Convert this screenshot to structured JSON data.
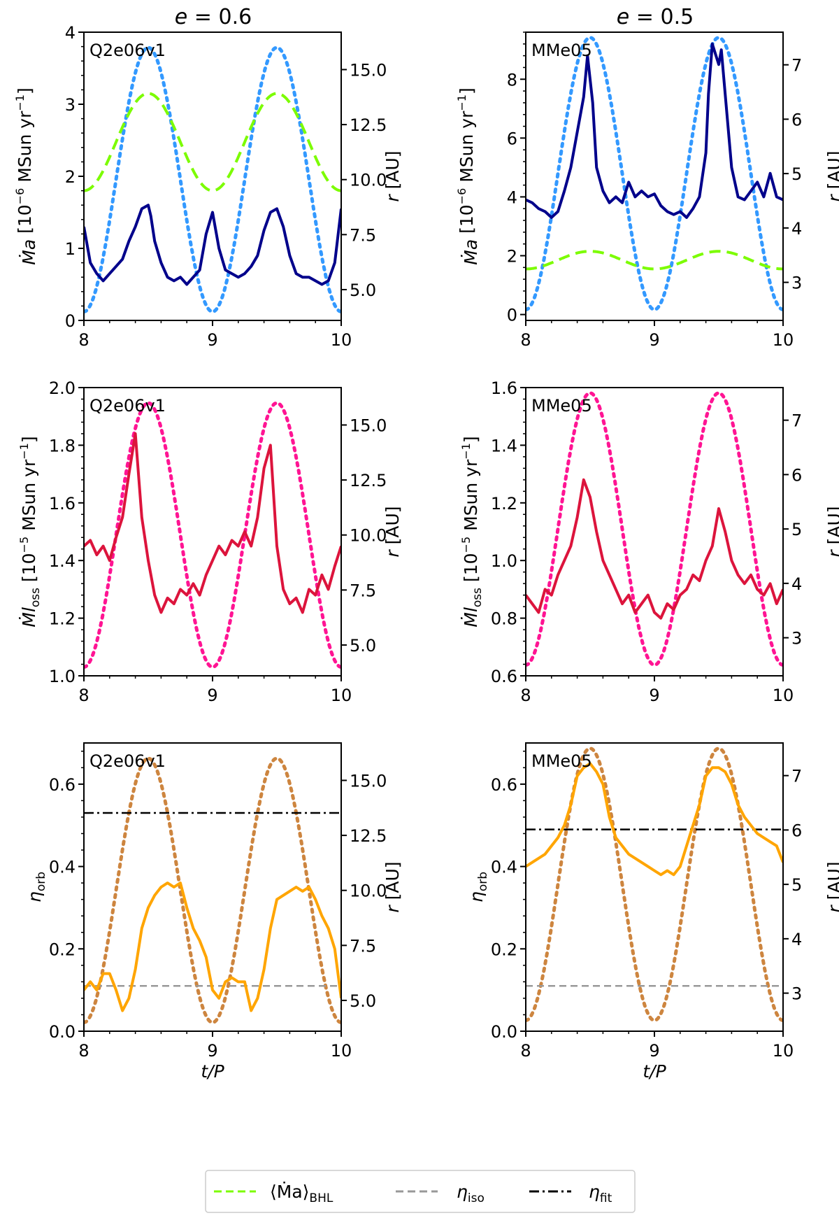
{
  "figure": {
    "columns": [
      {
        "title_lhs": "e",
        "title_eq": " = ",
        "title_val": "0.6"
      },
      {
        "title_lhs": "e",
        "title_eq": " = ",
        "title_val": "0.5"
      }
    ],
    "legend": [
      {
        "label_main": "⟨Ṁa⟩",
        "label_sub": "BHL",
        "color": "#7CFC00",
        "style": "dashed"
      },
      {
        "label_main": "η",
        "label_sub": "iso",
        "color": "#999999",
        "style": "dashed"
      },
      {
        "label_main": "η",
        "label_sub": "fit",
        "color": "#000000",
        "style": "dashdot"
      }
    ]
  },
  "chart_data": [
    {
      "type": "line",
      "row": 0,
      "col": 0,
      "annotation": "Q2e06v1",
      "ylabel": "Ṁa [10^-6 MSun yr^-1]",
      "y2label": "r [AU]",
      "xlim": [
        8,
        10
      ],
      "ylim": [
        0,
        4
      ],
      "y2lim": [
        3.6,
        16.7
      ],
      "xticks": [
        "8",
        "9",
        "10"
      ],
      "yticks": [
        "0",
        "1",
        "2",
        "3",
        "4"
      ],
      "y2ticks": [
        "5.0",
        "7.5",
        "10.0",
        "12.5",
        "15.0"
      ],
      "orbit": {
        "rmin": 4.0,
        "rmax": 16.0,
        "color": "#3399ff"
      },
      "bhl": {
        "min": 1.8,
        "max": 3.15,
        "color": "#7CFC00"
      },
      "main_color": "#00008b",
      "series": [
        {
          "name": "Ṁa",
          "x": [
            8.0,
            8.05,
            8.1,
            8.15,
            8.2,
            8.25,
            8.3,
            8.35,
            8.4,
            8.45,
            8.5,
            8.52,
            8.55,
            8.6,
            8.65,
            8.7,
            8.75,
            8.8,
            8.85,
            8.9,
            8.95,
            9.0,
            9.05,
            9.1,
            9.15,
            9.2,
            9.25,
            9.3,
            9.35,
            9.4,
            9.45,
            9.5,
            9.55,
            9.6,
            9.65,
            9.7,
            9.75,
            9.8,
            9.85,
            9.9,
            9.95,
            10.0
          ],
          "values": [
            1.3,
            0.8,
            0.65,
            0.55,
            0.65,
            0.75,
            0.85,
            1.1,
            1.3,
            1.55,
            1.6,
            1.45,
            1.1,
            0.8,
            0.6,
            0.55,
            0.6,
            0.5,
            0.6,
            0.7,
            1.2,
            1.5,
            1.0,
            0.7,
            0.65,
            0.6,
            0.65,
            0.75,
            0.9,
            1.25,
            1.5,
            1.55,
            1.3,
            0.9,
            0.65,
            0.6,
            0.6,
            0.55,
            0.5,
            0.55,
            0.8,
            1.55
          ]
        }
      ]
    },
    {
      "type": "line",
      "row": 0,
      "col": 1,
      "annotation": "MMe05",
      "ylabel": "Ṁa [10^-6 MSun yr^-1]",
      "y2label": "r [AU]",
      "xlim": [
        8,
        10
      ],
      "ylim": [
        -0.2,
        9.6
      ],
      "y2lim": [
        2.3,
        7.6
      ],
      "xticks": [
        "8",
        "9",
        "10"
      ],
      "yticks": [
        "0",
        "2",
        "4",
        "6",
        "8"
      ],
      "y2ticks": [
        "3",
        "4",
        "5",
        "6",
        "7"
      ],
      "orbit": {
        "rmin": 2.5,
        "rmax": 7.5,
        "color": "#3399ff"
      },
      "bhl": {
        "min": 1.55,
        "max": 2.15,
        "color": "#7CFC00"
      },
      "main_color": "#00008b",
      "series": [
        {
          "name": "Ṁa",
          "x": [
            8.0,
            8.05,
            8.1,
            8.15,
            8.2,
            8.25,
            8.3,
            8.35,
            8.4,
            8.45,
            8.48,
            8.5,
            8.52,
            8.55,
            8.6,
            8.65,
            8.7,
            8.75,
            8.8,
            8.85,
            8.9,
            8.95,
            9.0,
            9.05,
            9.1,
            9.15,
            9.2,
            9.25,
            9.3,
            9.35,
            9.4,
            9.42,
            9.45,
            9.5,
            9.52,
            9.55,
            9.6,
            9.65,
            9.7,
            9.75,
            9.8,
            9.85,
            9.9,
            9.95,
            10.0
          ],
          "values": [
            3.9,
            3.8,
            3.6,
            3.5,
            3.3,
            3.5,
            4.2,
            5.0,
            6.2,
            7.4,
            8.8,
            8.0,
            7.2,
            5.0,
            4.2,
            3.8,
            4.0,
            3.8,
            4.5,
            4.0,
            4.2,
            4.0,
            4.1,
            3.7,
            3.5,
            3.4,
            3.5,
            3.3,
            3.6,
            4.0,
            5.5,
            7.5,
            9.2,
            8.5,
            9.0,
            7.5,
            5.0,
            4.0,
            3.9,
            4.2,
            4.5,
            4.0,
            4.8,
            4.0,
            3.9
          ]
        }
      ]
    },
    {
      "type": "line",
      "row": 1,
      "col": 0,
      "annotation": "Q2e06v1",
      "ylabel": "Ṁloss [10^-5 MSun yr^-1]",
      "y2label": "r [AU]",
      "xlim": [
        8,
        10
      ],
      "ylim": [
        1.0,
        2.0
      ],
      "y2lim": [
        3.6,
        16.7
      ],
      "xticks": [
        "8",
        "9",
        "10"
      ],
      "yticks": [
        "1.0",
        "1.2",
        "1.4",
        "1.6",
        "1.8",
        "2.0"
      ],
      "y2ticks": [
        "5.0",
        "7.5",
        "10.0",
        "12.5",
        "15.0"
      ],
      "orbit": {
        "rmin": 4.0,
        "rmax": 16.0,
        "color": "#ff1493"
      },
      "main_color": "#dc143c",
      "series": [
        {
          "name": "Ṁloss",
          "x": [
            8.0,
            8.05,
            8.1,
            8.15,
            8.2,
            8.25,
            8.3,
            8.35,
            8.4,
            8.45,
            8.5,
            8.55,
            8.6,
            8.65,
            8.7,
            8.75,
            8.8,
            8.85,
            8.9,
            8.95,
            9.0,
            9.05,
            9.1,
            9.15,
            9.2,
            9.25,
            9.3,
            9.35,
            9.4,
            9.45,
            9.5,
            9.55,
            9.6,
            9.65,
            9.7,
            9.75,
            9.8,
            9.85,
            9.9,
            9.95,
            10.0
          ],
          "values": [
            1.45,
            1.47,
            1.42,
            1.45,
            1.4,
            1.48,
            1.55,
            1.7,
            1.84,
            1.55,
            1.4,
            1.28,
            1.22,
            1.27,
            1.25,
            1.3,
            1.28,
            1.32,
            1.28,
            1.35,
            1.4,
            1.45,
            1.42,
            1.47,
            1.45,
            1.5,
            1.45,
            1.55,
            1.72,
            1.8,
            1.45,
            1.3,
            1.25,
            1.27,
            1.22,
            1.3,
            1.28,
            1.35,
            1.3,
            1.38,
            1.45
          ]
        }
      ]
    },
    {
      "type": "line",
      "row": 1,
      "col": 1,
      "annotation": "MMe05",
      "ylabel": "Ṁloss [10^-5 MSun yr^-1]",
      "y2label": "r [AU]",
      "xlim": [
        8,
        10
      ],
      "ylim": [
        0.6,
        1.6
      ],
      "y2lim": [
        2.3,
        7.6
      ],
      "xticks": [
        "8",
        "9",
        "10"
      ],
      "yticks": [
        "0.6",
        "0.8",
        "1.0",
        "1.2",
        "1.4",
        "1.6"
      ],
      "y2ticks": [
        "3",
        "4",
        "5",
        "6",
        "7"
      ],
      "orbit": {
        "rmin": 2.5,
        "rmax": 7.5,
        "color": "#ff1493"
      },
      "main_color": "#dc143c",
      "series": [
        {
          "name": "Ṁloss",
          "x": [
            8.0,
            8.05,
            8.1,
            8.15,
            8.2,
            8.25,
            8.3,
            8.35,
            8.4,
            8.45,
            8.5,
            8.55,
            8.6,
            8.65,
            8.7,
            8.75,
            8.8,
            8.85,
            8.9,
            8.95,
            9.0,
            9.05,
            9.1,
            9.15,
            9.2,
            9.25,
            9.3,
            9.35,
            9.4,
            9.45,
            9.5,
            9.55,
            9.6,
            9.65,
            9.7,
            9.75,
            9.8,
            9.85,
            9.9,
            9.95,
            10.0
          ],
          "values": [
            0.88,
            0.85,
            0.82,
            0.9,
            0.88,
            0.95,
            1.0,
            1.05,
            1.15,
            1.28,
            1.22,
            1.1,
            1.0,
            0.95,
            0.9,
            0.85,
            0.88,
            0.82,
            0.85,
            0.88,
            0.82,
            0.8,
            0.85,
            0.83,
            0.88,
            0.9,
            0.95,
            0.93,
            1.0,
            1.05,
            1.18,
            1.1,
            1.0,
            0.95,
            0.92,
            0.95,
            0.9,
            0.88,
            0.92,
            0.85,
            0.9
          ]
        }
      ]
    },
    {
      "type": "line",
      "row": 2,
      "col": 0,
      "annotation": "Q2e06v1",
      "ylabel": "ηorb",
      "y2label": "r [AU]",
      "xlabel": "t/P",
      "xlim": [
        8,
        10
      ],
      "ylim": [
        0.0,
        0.7
      ],
      "y2lim": [
        3.6,
        16.7
      ],
      "xticks": [
        "8",
        "9",
        "10"
      ],
      "yticks": [
        "0.0",
        "0.2",
        "0.4",
        "0.6"
      ],
      "y2ticks": [
        "5.0",
        "7.5",
        "10.0",
        "12.5",
        "15.0"
      ],
      "orbit": {
        "rmin": 4.0,
        "rmax": 16.0,
        "color": "#cd853f"
      },
      "eta_iso": 0.11,
      "eta_fit": 0.53,
      "main_color": "#ffa500",
      "series": [
        {
          "name": "ηorb",
          "x": [
            8.0,
            8.05,
            8.1,
            8.15,
            8.2,
            8.25,
            8.3,
            8.35,
            8.4,
            8.45,
            8.5,
            8.55,
            8.6,
            8.65,
            8.7,
            8.75,
            8.8,
            8.85,
            8.9,
            8.95,
            9.0,
            9.05,
            9.1,
            9.15,
            9.2,
            9.25,
            9.3,
            9.35,
            9.4,
            9.45,
            9.5,
            9.55,
            9.6,
            9.65,
            9.7,
            9.75,
            9.8,
            9.85,
            9.9,
            9.95,
            10.0
          ],
          "values": [
            0.1,
            0.12,
            0.1,
            0.14,
            0.14,
            0.1,
            0.05,
            0.08,
            0.15,
            0.25,
            0.3,
            0.33,
            0.35,
            0.36,
            0.35,
            0.36,
            0.3,
            0.25,
            0.22,
            0.18,
            0.1,
            0.08,
            0.12,
            0.13,
            0.12,
            0.12,
            0.05,
            0.08,
            0.15,
            0.25,
            0.32,
            0.33,
            0.34,
            0.35,
            0.34,
            0.35,
            0.32,
            0.28,
            0.25,
            0.2,
            0.08
          ]
        }
      ]
    },
    {
      "type": "line",
      "row": 2,
      "col": 1,
      "annotation": "MMe05",
      "ylabel": "ηorb",
      "y2label": "r [AU]",
      "xlabel": "t/P",
      "xlim": [
        8,
        10
      ],
      "ylim": [
        0.0,
        0.7
      ],
      "y2lim": [
        2.3,
        7.6
      ],
      "xticks": [
        "8",
        "9",
        "10"
      ],
      "yticks": [
        "0.0",
        "0.2",
        "0.4",
        "0.6"
      ],
      "y2ticks": [
        "3",
        "4",
        "5",
        "6",
        "7"
      ],
      "orbit": {
        "rmin": 2.5,
        "rmax": 7.5,
        "color": "#cd853f"
      },
      "eta_iso": 0.11,
      "eta_fit": 0.49,
      "main_color": "#ffa500",
      "series": [
        {
          "name": "ηorb",
          "x": [
            8.0,
            8.05,
            8.1,
            8.15,
            8.2,
            8.25,
            8.3,
            8.35,
            8.4,
            8.45,
            8.5,
            8.55,
            8.6,
            8.65,
            8.7,
            8.75,
            8.8,
            8.85,
            8.9,
            8.95,
            9.0,
            9.05,
            9.1,
            9.15,
            9.2,
            9.25,
            9.3,
            9.35,
            9.4,
            9.45,
            9.5,
            9.55,
            9.6,
            9.65,
            9.7,
            9.75,
            9.8,
            9.85,
            9.9,
            9.95,
            10.0
          ],
          "values": [
            0.4,
            0.41,
            0.42,
            0.43,
            0.45,
            0.47,
            0.5,
            0.55,
            0.62,
            0.64,
            0.65,
            0.63,
            0.6,
            0.52,
            0.47,
            0.45,
            0.43,
            0.42,
            0.41,
            0.4,
            0.39,
            0.38,
            0.39,
            0.38,
            0.4,
            0.45,
            0.5,
            0.55,
            0.62,
            0.64,
            0.64,
            0.63,
            0.6,
            0.55,
            0.52,
            0.5,
            0.48,
            0.47,
            0.46,
            0.45,
            0.41
          ]
        }
      ]
    }
  ]
}
